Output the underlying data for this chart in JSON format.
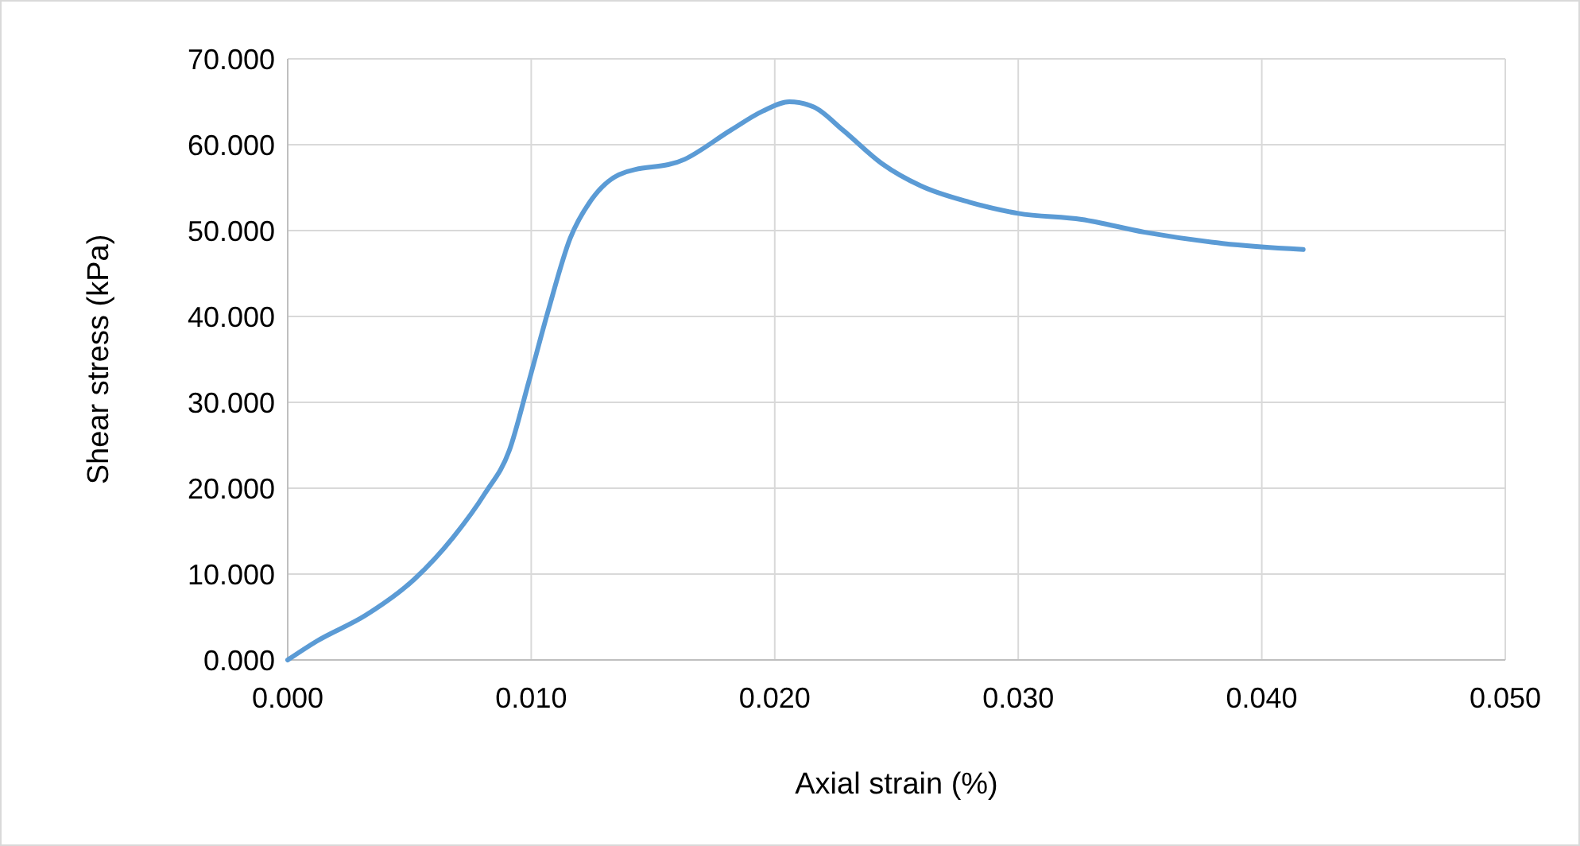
{
  "chart_data": {
    "type": "line",
    "xlabel": "Axial strain (%)",
    "ylabel": "Shear stress (kPa)",
    "grid": true,
    "marker": "none",
    "line_style": "solid",
    "xlim": [
      0,
      0.05
    ],
    "ylim": [
      0,
      70
    ],
    "xticks": [
      {
        "value": 0,
        "label": "0.000"
      },
      {
        "value": 0.01,
        "label": "0.010"
      },
      {
        "value": 0.02,
        "label": "0.020"
      },
      {
        "value": 0.03,
        "label": "0.030"
      },
      {
        "value": 0.04,
        "label": "0.040"
      },
      {
        "value": 0.05,
        "label": "0.050"
      }
    ],
    "yticks": [
      {
        "value": 0,
        "label": "0.000"
      },
      {
        "value": 10,
        "label": "10.000"
      },
      {
        "value": 20,
        "label": "20.000"
      },
      {
        "value": 30,
        "label": "30.000"
      },
      {
        "value": 40,
        "label": "40.000"
      },
      {
        "value": 50,
        "label": "50.000"
      },
      {
        "value": 60,
        "label": "60.000"
      },
      {
        "value": 70,
        "label": "70.000"
      }
    ],
    "series": [
      {
        "color": "#5b9bd5",
        "x": [
          0,
          0.0012,
          0.0032,
          0.0052,
          0.0068,
          0.0081,
          0.0091,
          0.0099,
          0.0107,
          0.0116,
          0.0125,
          0.0136,
          0.0163,
          0.0182,
          0.0195,
          0.0206,
          0.0216,
          0.0228,
          0.0244,
          0.026,
          0.028,
          0.03,
          0.0326,
          0.0352,
          0.0384,
          0.0417
        ],
        "values": [
          0,
          2.2,
          5.2,
          9.4,
          14.3,
          19.4,
          24.4,
          32.4,
          40.7,
          49.1,
          53.7,
          56.5,
          58.3,
          61.7,
          63.9,
          65.0,
          64.4,
          61.7,
          57.8,
          55.2,
          53.3,
          52.0,
          51.3,
          49.8,
          48.5,
          47.8
        ]
      }
    ]
  }
}
